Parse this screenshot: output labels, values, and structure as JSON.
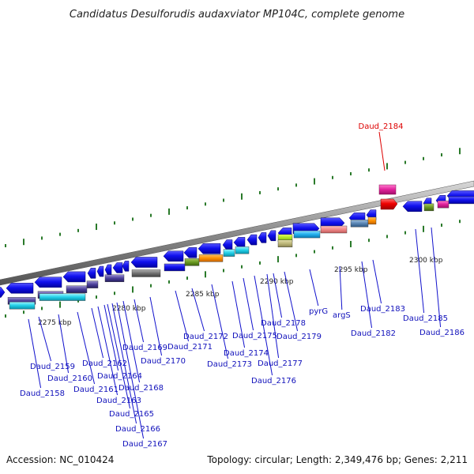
{
  "title": "Candidatus Desulforudis audaxviator MP104C, complete genome",
  "footer": {
    "accession": "Accession: NC_010424",
    "topology": "Topology: circular; Length: 2,349,476 bp; Genes: 2,211"
  },
  "highlight_gene": "Daud_2184",
  "scale_labels": [
    "2275 kbp",
    "2280 kbp",
    "2285 kbp",
    "2290 kbp",
    "2295 kbp",
    "2300 kbp"
  ],
  "gene_labels": [
    "Daud_2158",
    "Daud_2159",
    "Daud_2160",
    "Daud_2161",
    "Daud_2162",
    "Daud_2163",
    "Daud_2164",
    "Daud_2165",
    "Daud_2166",
    "Daud_2167",
    "Daud_2168",
    "Daud_2169",
    "Daud_2170",
    "Daud_2171",
    "Daud_2172",
    "Daud_2173",
    "Daud_2174",
    "Daud_2175",
    "Daud_2176",
    "Daud_2177",
    "Daud_2178",
    "Daud_2179",
    "pyrG",
    "argS",
    "Daud_2182",
    "Daud_2183",
    "Daud_2185",
    "Daud_2186"
  ],
  "colors": {
    "gene": "#1111dd",
    "highlight": "#dd0000",
    "label": "#1111bb",
    "tick": "#2a7a2a",
    "backbone": "#9a9a9a"
  }
}
